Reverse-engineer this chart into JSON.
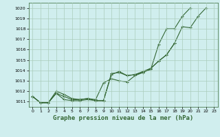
{
  "x": [
    0,
    1,
    2,
    3,
    4,
    5,
    6,
    7,
    8,
    9,
    10,
    11,
    12,
    13,
    14,
    15,
    16,
    17,
    18,
    19,
    20,
    21,
    22,
    23
  ],
  "line1": [
    1011.5,
    1010.9,
    1010.9,
    1011.8,
    1011.2,
    1011.1,
    1011.1,
    1011.2,
    1011.1,
    1011.1,
    1013.7,
    1013.8,
    1013.5,
    1013.6,
    1013.8,
    1014.1,
    1016.5,
    1018.0,
    1018.0,
    1019.2,
    1020.0,
    null,
    null,
    null
  ],
  "line2": [
    1011.5,
    1010.9,
    1010.9,
    1011.8,
    1011.5,
    1011.2,
    1011.2,
    1011.3,
    1011.2,
    1012.8,
    1013.2,
    1013.0,
    1012.9,
    1013.5,
    1013.8,
    1014.2,
    1014.9,
    1015.5,
    1016.6,
    null,
    null,
    null,
    null,
    null
  ],
  "line3": [
    1011.5,
    1010.9,
    1010.9,
    1012.0,
    1011.7,
    1011.3,
    1011.2,
    1011.3,
    1011.1,
    1011.1,
    1013.6,
    1013.9,
    1013.5,
    1013.6,
    1013.9,
    1014.2,
    1014.9,
    1015.5,
    1016.6,
    1018.2,
    1018.1,
    1019.2,
    1020.0,
    null
  ],
  "bg_color": "#d0eeee",
  "grid_color": "#aaccbb",
  "line_color": "#336633",
  "marker": "+",
  "xlabel": "Graphe pression niveau de la mer (hPa)",
  "xlabel_fontsize": 6.5,
  "ylim": [
    1010.5,
    1020.5
  ],
  "xlim": [
    -0.5,
    23.5
  ],
  "yticks": [
    1011,
    1012,
    1013,
    1014,
    1015,
    1016,
    1017,
    1018,
    1019,
    1020
  ],
  "xticks": [
    0,
    1,
    2,
    3,
    4,
    5,
    6,
    7,
    8,
    9,
    10,
    11,
    12,
    13,
    14,
    15,
    16,
    17,
    18,
    19,
    20,
    21,
    22,
    23
  ]
}
